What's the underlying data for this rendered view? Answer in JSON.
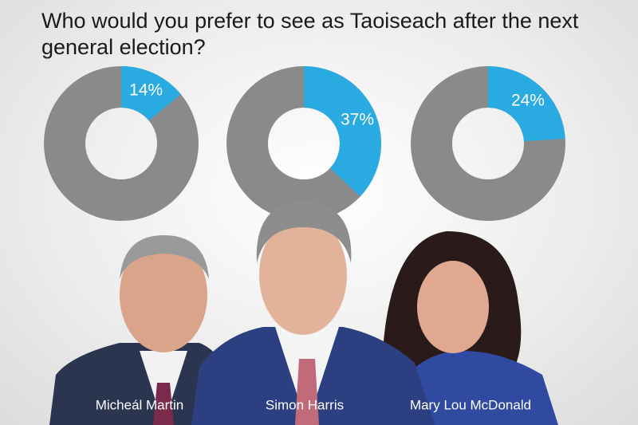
{
  "title": "Who would you prefer to see as Taoiseach after the next general election?",
  "chart_data": [
    {
      "type": "donut",
      "categories": [
        "Micheál Martin"
      ],
      "values": [
        14
      ],
      "value_labels": [
        "14%"
      ],
      "color": "#29abe2",
      "rest_color": "#8a8a8a"
    },
    {
      "type": "donut",
      "categories": [
        "Simon Harris"
      ],
      "values": [
        37
      ],
      "value_labels": [
        "37%"
      ],
      "color": "#29abe2",
      "rest_color": "#8a8a8a"
    },
    {
      "type": "donut",
      "categories": [
        "Mary Lou McDonald"
      ],
      "values": [
        24
      ],
      "value_labels": [
        "24%"
      ],
      "color": "#29abe2",
      "rest_color": "#8a8a8a"
    }
  ]
}
